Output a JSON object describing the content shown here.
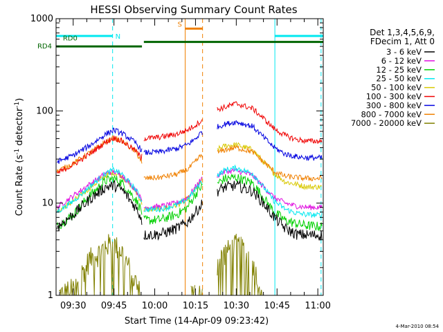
{
  "chart_data": {
    "type": "line",
    "title": "HESSI Observing Summary Count Rates",
    "xlabel": "Start Time (14-Apr-09 09:23:42)",
    "ylabel_main": "Count Rate (s",
    "ylabel_sup1": "-1",
    "ylabel_mid": " detector",
    "ylabel_sup2": "-1",
    "ylabel_end": ")",
    "y_scale": "log",
    "ylim": [
      1,
      1000
    ],
    "xlim_minutes_after_0900": [
      23.7,
      122
    ],
    "x_ticks": [
      {
        "label": "09:30",
        "t": 30
      },
      {
        "label": "09:45",
        "t": 45
      },
      {
        "label": "10:00",
        "t": 60
      },
      {
        "label": "10:15",
        "t": 75
      },
      {
        "label": "10:30",
        "t": 90
      },
      {
        "label": "10:45",
        "t": 105
      },
      {
        "label": "11:00",
        "t": 120
      }
    ],
    "y_ticks": [
      {
        "label": "1",
        "v": 1
      },
      {
        "label": "10",
        "v": 10
      },
      {
        "label": "100",
        "v": 100
      },
      {
        "label": "1000",
        "v": 1000
      }
    ],
    "legend": {
      "header": [
        "Det 1,3,4,5,6,9,",
        "FDecim 1, Att 0"
      ],
      "entries": [
        {
          "label": "3 - 6 keV",
          "color": "#000000"
        },
        {
          "label": "6 - 12 keV",
          "color": "#e010e0"
        },
        {
          "label": "12 - 25 keV",
          "color": "#00d000"
        },
        {
          "label": "25 - 50 keV",
          "color": "#00e8f0"
        },
        {
          "label": "50 - 100 keV",
          "color": "#d8c800"
        },
        {
          "label": "100 - 300 keV",
          "color": "#f00000"
        },
        {
          "label": "300 - 800 keV",
          "color": "#0000e0"
        },
        {
          "label": "800 - 7000 keV",
          "color": "#f08000"
        },
        {
          "label": "7000 - 20000 keV",
          "color": "#808000"
        }
      ],
      "placement": "right"
    },
    "data_gaps": [
      [
        55.3,
        56
      ],
      [
        77.6,
        83
      ]
    ],
    "series": [
      {
        "name": "3 - 6 keV",
        "color": "#000000",
        "x": [
          24,
          30,
          36,
          42,
          45,
          48,
          53,
          55,
          56,
          62,
          68,
          72,
          75,
          77,
          83,
          86,
          90,
          96,
          100,
          104,
          108,
          112,
          116,
          120
        ],
        "y": [
          5.5,
          7.5,
          11,
          15,
          15.5,
          14,
          9,
          7,
          4.5,
          4.6,
          5.3,
          6.2,
          8,
          9.5,
          13.5,
          15,
          15.5,
          13.5,
          10,
          7,
          5.3,
          4.6,
          4.5,
          4.5
        ]
      },
      {
        "name": "6 - 12 keV",
        "color": "#e010e0",
        "x": [
          24,
          30,
          36,
          42,
          45,
          48,
          53,
          55,
          56,
          62,
          68,
          72,
          75,
          77,
          83,
          86,
          90,
          96,
          100,
          104,
          108,
          112,
          116,
          120
        ],
        "y": [
          9,
          12,
          16,
          21,
          22,
          20,
          14,
          11,
          9,
          9.2,
          10,
          11.5,
          15,
          18,
          20,
          22,
          22.5,
          20,
          15,
          11.5,
          10,
          9.3,
          9,
          9
        ]
      },
      {
        "name": "12 - 25 keV",
        "color": "#00d000",
        "x": [
          24,
          30,
          36,
          42,
          45,
          48,
          53,
          55,
          56,
          62,
          68,
          72,
          75,
          77,
          83,
          86,
          90,
          96,
          100,
          104,
          108,
          112,
          116,
          120
        ],
        "y": [
          5.5,
          7.5,
          12,
          17.5,
          18.5,
          16.5,
          11,
          8.5,
          6.5,
          6.6,
          7.5,
          9,
          12.5,
          15,
          16.5,
          18.5,
          19,
          16.5,
          11.5,
          8,
          6.5,
          6,
          5.7,
          5.6
        ]
      },
      {
        "name": "25 - 50 keV",
        "color": "#00e8f0",
        "x": [
          24,
          30,
          36,
          42,
          45,
          48,
          53,
          55,
          56,
          62,
          68,
          72,
          75,
          77,
          83,
          86,
          90,
          96,
          100,
          104,
          108,
          112,
          116,
          120
        ],
        "y": [
          8,
          10.5,
          15,
          21,
          23,
          20.5,
          14,
          11,
          8.5,
          8.6,
          9.5,
          11,
          14,
          17,
          20,
          23,
          24,
          21,
          15,
          10.5,
          8.6,
          7.8,
          7.5,
          7.4
        ]
      },
      {
        "name": "50 - 100 keV",
        "color": "#d8c800",
        "x": [
          24,
          30,
          36,
          42,
          45,
          48,
          53,
          55,
          56,
          62,
          68,
          72,
          75,
          77,
          83,
          86,
          90,
          96,
          100,
          104,
          108,
          112,
          116,
          120
        ],
        "y": [
          8,
          10.5,
          14.5,
          20,
          21.5,
          19.5,
          13.5,
          10.5,
          8.5,
          8.6,
          9.5,
          11,
          14,
          17,
          38,
          42,
          43,
          38,
          28,
          21,
          17,
          16,
          15,
          15
        ]
      },
      {
        "name": "100 - 300 keV",
        "color": "#f00000",
        "x": [
          24,
          30,
          36,
          42,
          45,
          48,
          53,
          55,
          56,
          62,
          68,
          72,
          75,
          77,
          83,
          86,
          90,
          96,
          100,
          104,
          108,
          112,
          116,
          120
        ],
        "y": [
          21,
          26,
          34,
          46,
          51,
          47,
          37,
          31,
          50,
          52,
          56,
          62,
          70,
          78,
          104,
          110,
          120,
          106,
          83,
          64,
          54,
          49,
          47,
          47
        ]
      },
      {
        "name": "300 - 800 keV",
        "color": "#0000e0",
        "x": [
          24,
          30,
          36,
          42,
          45,
          48,
          53,
          55,
          56,
          62,
          68,
          72,
          75,
          77,
          83,
          86,
          90,
          96,
          100,
          104,
          108,
          112,
          116,
          120
        ],
        "y": [
          28,
          33,
          42,
          56,
          62,
          57,
          45,
          38,
          35,
          36,
          39,
          43,
          50,
          58,
          67,
          72,
          76,
          68,
          52,
          40,
          34,
          32,
          31,
          31
        ]
      },
      {
        "name": "800 - 7000 keV",
        "color": "#f08000",
        "x": [
          24,
          30,
          36,
          42,
          45,
          48,
          53,
          55,
          56,
          62,
          68,
          72,
          75,
          77,
          83,
          86,
          90,
          96,
          100,
          104,
          108,
          112,
          116,
          120
        ],
        "y": [
          22,
          27,
          35,
          46,
          51,
          47,
          36,
          29,
          18.5,
          19,
          20.5,
          23,
          28,
          33,
          35,
          38,
          40,
          36,
          28,
          22,
          19.5,
          19,
          18.5,
          18.5
        ]
      },
      {
        "name": "7000 - 20000 keV",
        "color": "#808000",
        "x": [
          24,
          30,
          36,
          40,
          42,
          45,
          48,
          50,
          54,
          55,
          73,
          74,
          75,
          76,
          84,
          86,
          88,
          90,
          94,
          96,
          98,
          100
        ],
        "y": [
          1,
          1.2,
          2.5,
          3.0,
          3.6,
          3.6,
          3.0,
          2.2,
          1.2,
          1,
          1,
          1.5,
          1.0,
          1,
          2.5,
          3,
          3.2,
          3.6,
          3.0,
          2.4,
          1.4,
          1
        ]
      }
    ],
    "mode_bars": [
      {
        "label": "N",
        "color": "#00e8f0",
        "t0": 23.7,
        "t1": 44.5,
        "level": 650,
        "label_t": 45.5
      },
      {
        "label": "",
        "color": "#00e8f0",
        "t0": 104.2,
        "t1": 122,
        "level": 650,
        "label_t": null
      },
      {
        "label": "S",
        "color": "#f08000",
        "t0": 71.2,
        "t1": 77.6,
        "level": 780,
        "label_t": 70.0
      },
      {
        "label": "RD0",
        "color": "#006400",
        "t0": 56,
        "t1": 122,
        "level": 560,
        "label_t": 26.2
      },
      {
        "label": "RD4",
        "color": "#006400",
        "t0": 23.7,
        "t1": 55.3,
        "level": 500,
        "label_t": null
      }
    ],
    "vertical_markers": [
      {
        "t": 23.7,
        "color": "#00e8f0",
        "style": "solid"
      },
      {
        "t": 44.5,
        "color": "#00e8f0",
        "style": "dashed"
      },
      {
        "t": 104.2,
        "color": "#00e8f0",
        "style": "solid"
      },
      {
        "t": 121.2,
        "color": "#00e8f0",
        "style": "dashed"
      },
      {
        "t": 71.2,
        "color": "#f08000",
        "style": "solid"
      },
      {
        "t": 77.6,
        "color": "#f08000",
        "style": "dashed"
      }
    ],
    "left_label": "RD4",
    "timestamp": "4-Mar-2010 08:54"
  }
}
